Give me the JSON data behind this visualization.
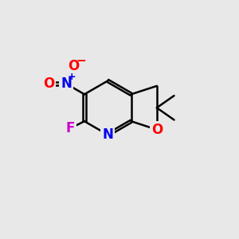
{
  "bg_color": "#e8e8e8",
  "bond_color": "#000000",
  "bond_width": 1.8,
  "dbo": 0.055,
  "atom_colors": {
    "N": "#0000ee",
    "O": "#ff0000",
    "F": "#cc00cc",
    "Nplus": "#0000ee",
    "Ominus": "#ff0000"
  },
  "font_size_atom": 12,
  "figsize": [
    3.0,
    3.0
  ],
  "dpi": 100
}
